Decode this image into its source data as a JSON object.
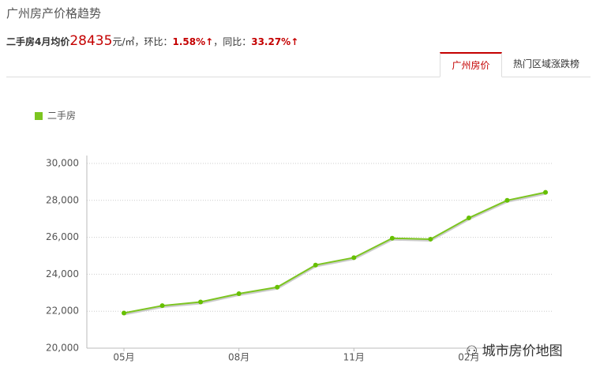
{
  "header": {
    "title": "广州房产价格趋势",
    "summary": {
      "label": "二手房4月均价",
      "price": "28435",
      "unit": "元/㎡",
      "mom_label": "，环比：",
      "mom": "1.58%↑",
      "yoy_label": "，同比：",
      "yoy": "33.27%↑"
    }
  },
  "tabs": [
    "广州房价",
    "热门区域涨跌榜"
  ],
  "chart_data": {
    "type": "line",
    "categories": [
      "05月",
      null,
      null,
      "08月",
      null,
      null,
      "11月",
      null,
      null,
      "02月",
      null,
      null
    ],
    "series": [
      {
        "name": "二手房",
        "color": "#7cc520",
        "values": [
          21900,
          22300,
          22500,
          22950,
          23300,
          24500,
          24900,
          25950,
          25900,
          27050,
          28000,
          28435
        ]
      }
    ],
    "ylim": [
      20000,
      30000
    ],
    "yticks": [
      {
        "value": 20000,
        "label": "20,000"
      },
      {
        "value": 22000,
        "label": "22,000"
      },
      {
        "value": 24000,
        "label": "24,000"
      },
      {
        "value": 26000,
        "label": "26,000"
      },
      {
        "value": 28000,
        "label": "28,000"
      },
      {
        "value": 30000,
        "label": "30,000"
      }
    ],
    "grid": true,
    "legend": "top-left"
  },
  "watermark": "城市房价地图"
}
